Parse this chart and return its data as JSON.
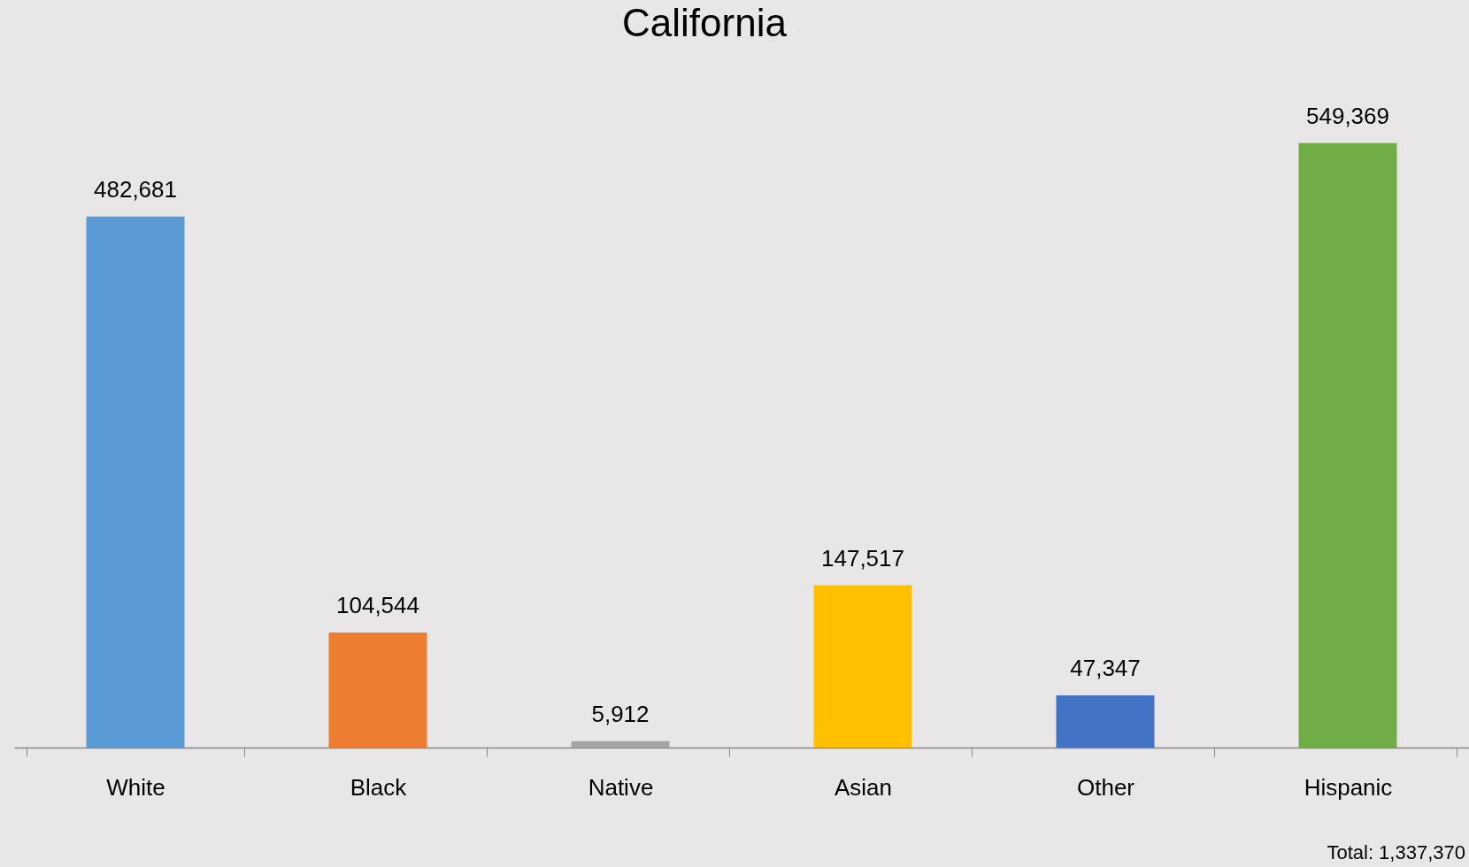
{
  "chart_data": {
    "type": "bar",
    "title": "California",
    "categories": [
      "White",
      "Black",
      "Native",
      "Asian",
      "Other",
      "Hispanic"
    ],
    "values": [
      482681,
      104544,
      5912,
      147517,
      47347,
      549369
    ],
    "colors": [
      "#5b9bd5",
      "#ed7d31",
      "#a5a5a5",
      "#ffc000",
      "#4472c4",
      "#70ad47"
    ],
    "value_labels": [
      "482,681",
      "104,544",
      "5,912",
      "147,517",
      "47,347",
      "549,369"
    ],
    "grid": false,
    "annotations": [
      "Total: 1,337,370"
    ]
  }
}
